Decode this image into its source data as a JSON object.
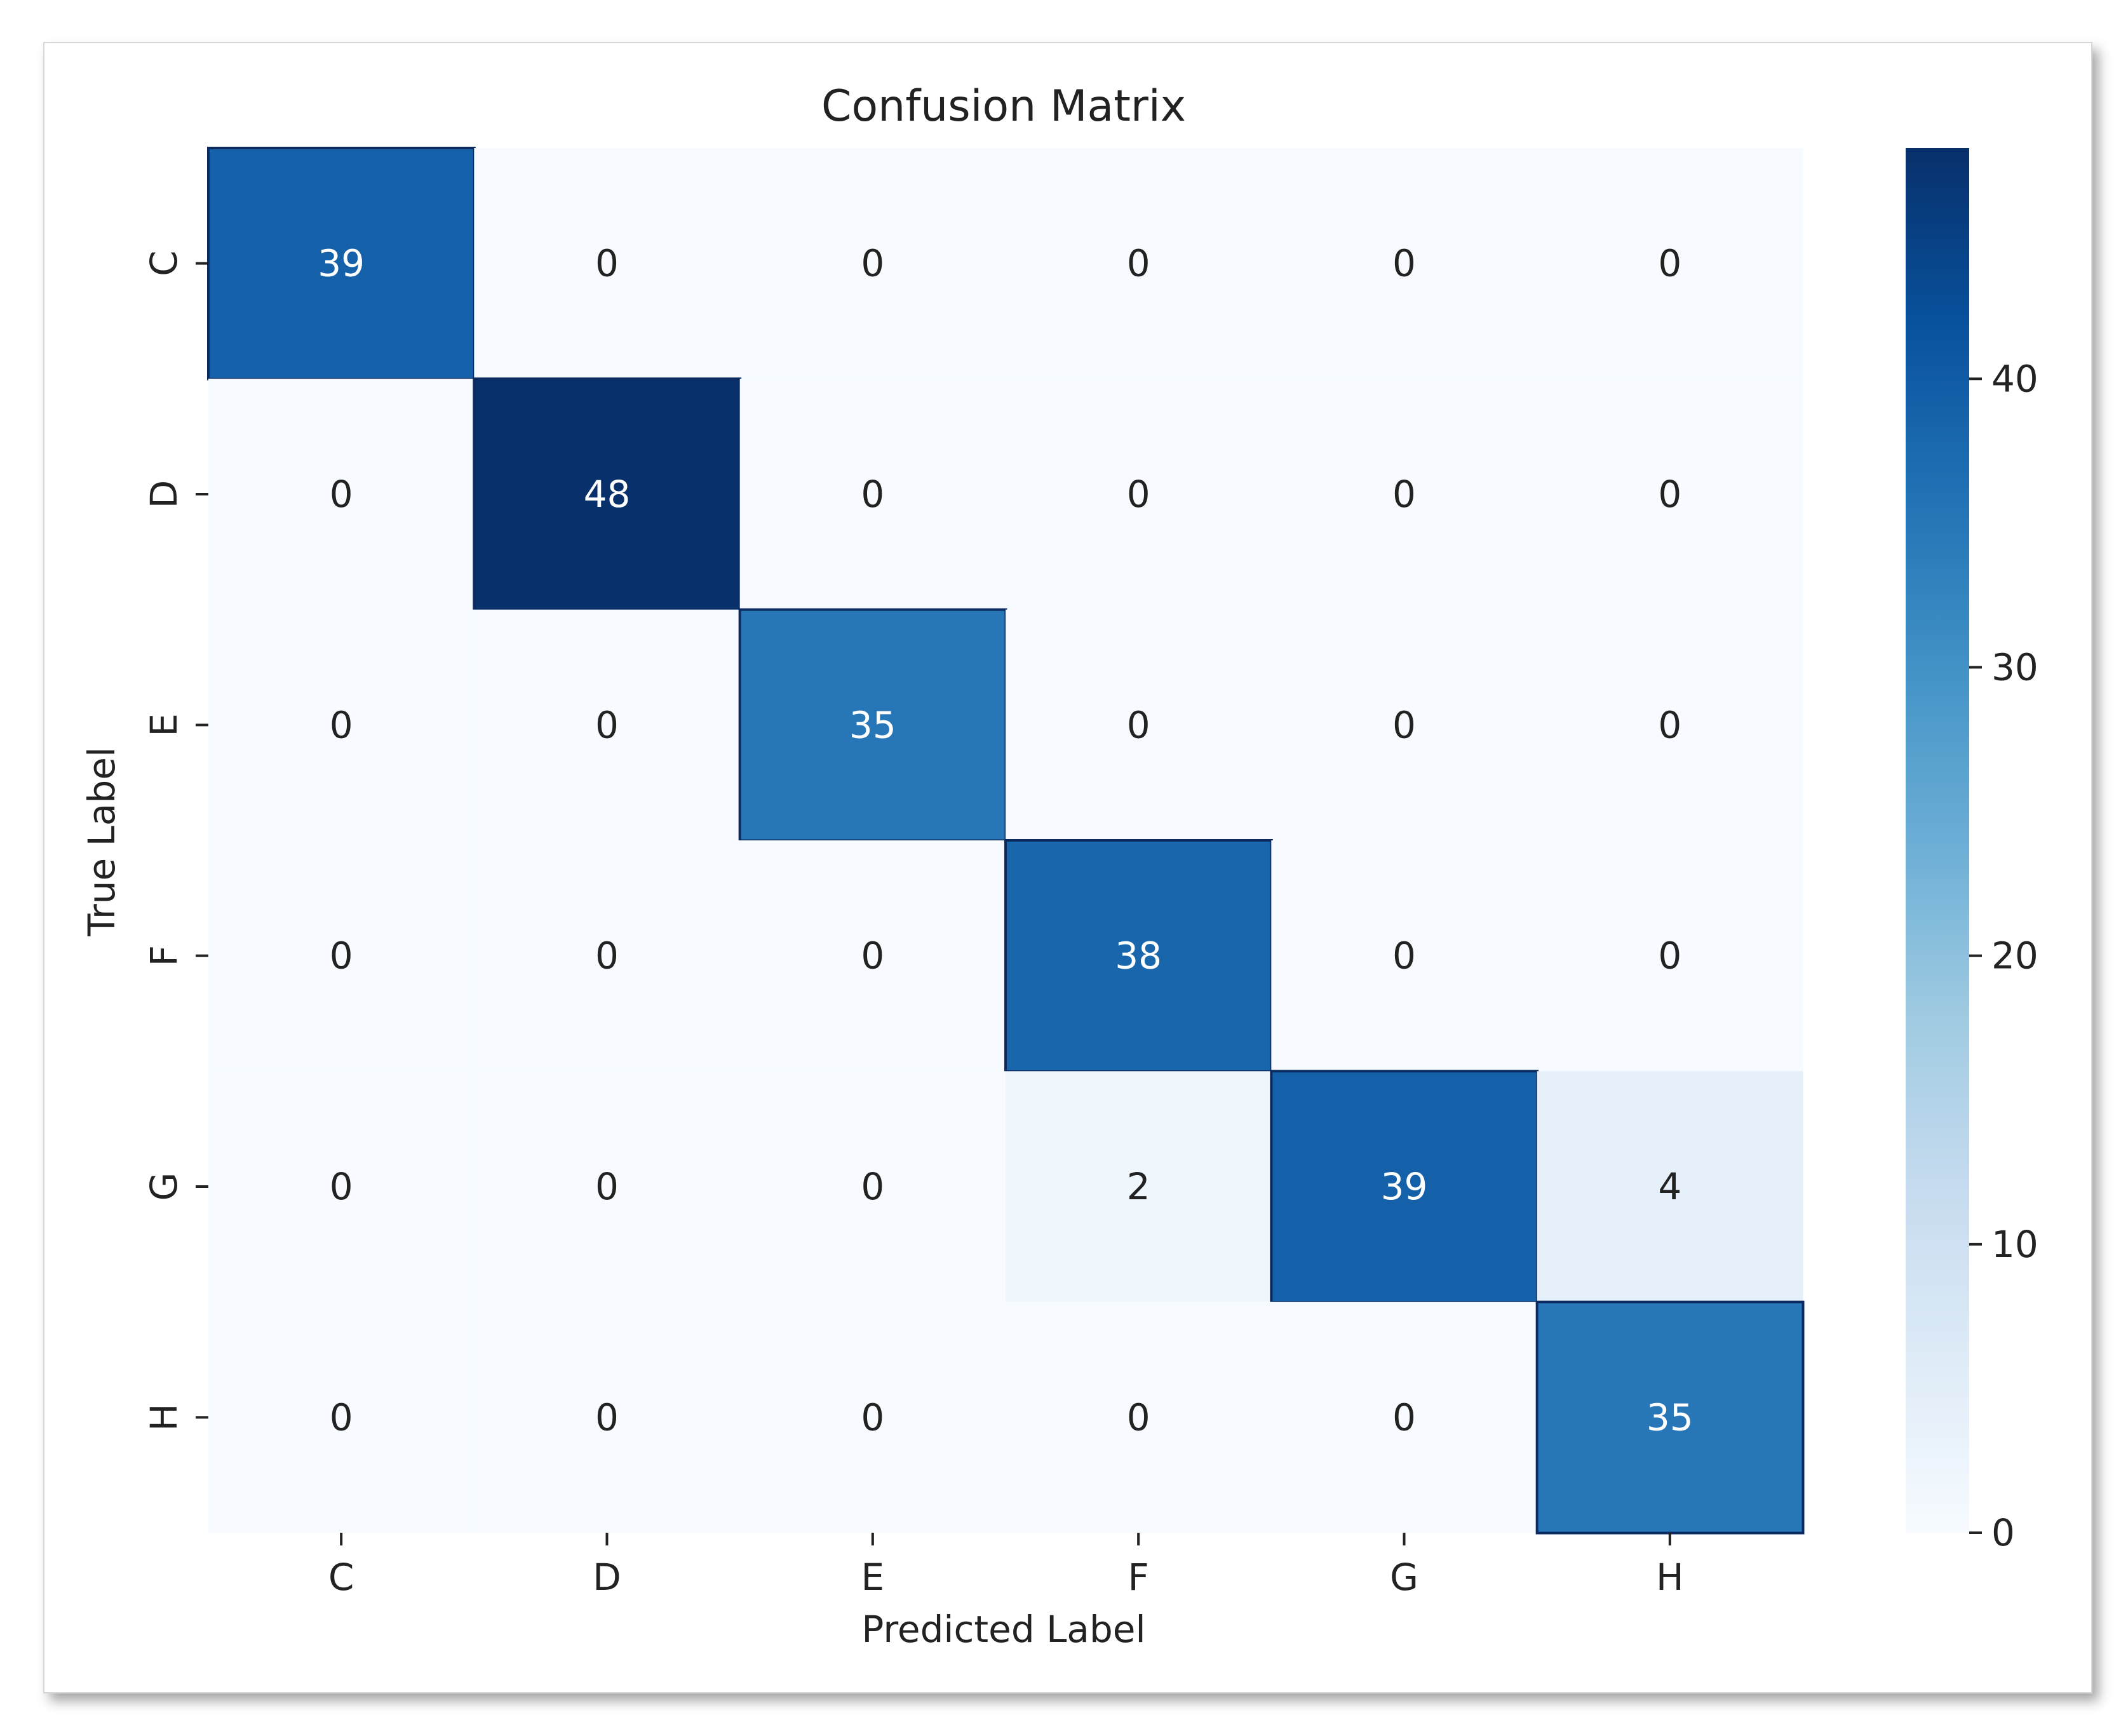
{
  "chart_data": {
    "type": "heatmap",
    "title": "Confusion Matrix",
    "xlabel": "Predicted Label",
    "ylabel": "True Label",
    "x_categories": [
      "C",
      "D",
      "E",
      "F",
      "G",
      "H"
    ],
    "y_categories": [
      "C",
      "D",
      "E",
      "F",
      "G",
      "H"
    ],
    "values": [
      [
        39,
        0,
        0,
        0,
        0,
        0
      ],
      [
        0,
        48,
        0,
        0,
        0,
        0
      ],
      [
        0,
        0,
        35,
        0,
        0,
        0
      ],
      [
        0,
        0,
        0,
        38,
        0,
        0
      ],
      [
        0,
        0,
        0,
        2,
        39,
        4
      ],
      [
        0,
        0,
        0,
        0,
        0,
        35
      ]
    ],
    "colormap": "Blues",
    "colorbar": {
      "min": 0,
      "max": 48,
      "ticks": [
        0,
        10,
        20,
        30,
        40
      ],
      "tick_labels": [
        "0",
        "10",
        "20",
        "30",
        "40"
      ]
    }
  },
  "colors": {
    "low": "#f7fbff",
    "high": "#08306b",
    "text_dark": "#222222",
    "text_light": "#ffffff"
  }
}
